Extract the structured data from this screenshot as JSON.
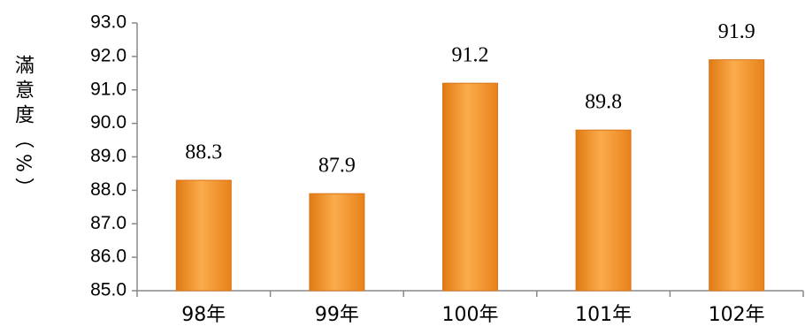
{
  "chart_data": {
    "type": "bar",
    "y_label": "滿意度（%）",
    "categories": [
      "98年",
      "99年",
      "100年",
      "101年",
      "102年"
    ],
    "values": [
      88.3,
      87.9,
      91.2,
      89.8,
      91.9
    ],
    "color": "#f39a2e",
    "ylim": [
      85,
      93
    ],
    "yticks": [
      {
        "value": 85,
        "label": "85.0"
      },
      {
        "value": 86,
        "label": "86.0"
      },
      {
        "value": 87,
        "label": "87.0"
      },
      {
        "value": 88,
        "label": "88.0"
      },
      {
        "value": 89,
        "label": "89.0"
      },
      {
        "value": 90,
        "label": "90.0"
      },
      {
        "value": 91,
        "label": "91.0"
      },
      {
        "value": 92,
        "label": "92.0"
      },
      {
        "value": 93,
        "label": "93.0"
      }
    ],
    "grid": false
  }
}
